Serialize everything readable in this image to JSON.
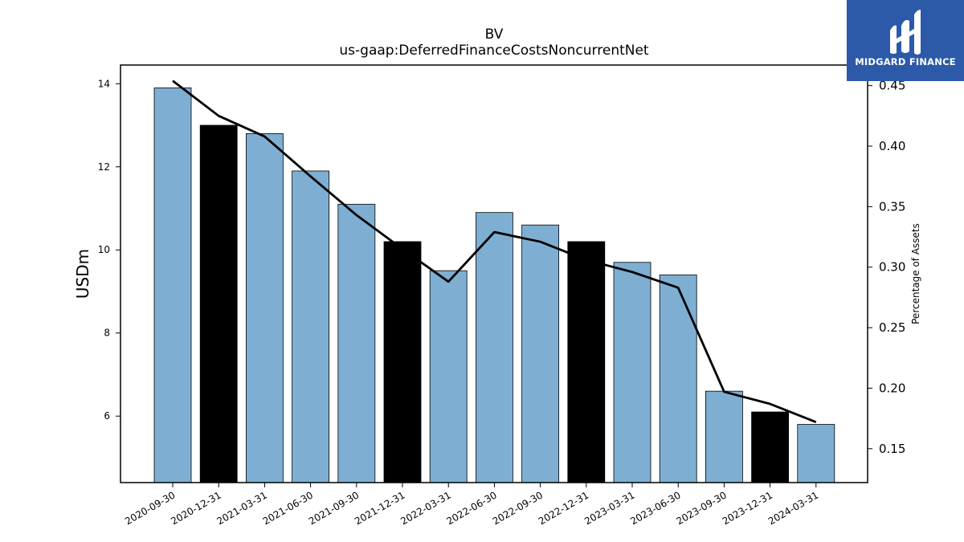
{
  "brand": {
    "name": "MIDGARD FINANCE",
    "bg_color": "#2c5aa9"
  },
  "chart_data": {
    "type": "bar",
    "title": "BV",
    "subtitle": "us-gaap:DeferredFinanceCostsNoncurrentNet",
    "ylabel": "USDm",
    "y2label": "Percentage of Assets",
    "categories": [
      "2020-09-30",
      "2020-12-31",
      "2021-03-31",
      "2021-06-30",
      "2021-09-30",
      "2021-12-31",
      "2022-03-31",
      "2022-06-30",
      "2022-09-30",
      "2022-12-31",
      "2023-03-31",
      "2023-06-30",
      "2023-09-30",
      "2023-12-31",
      "2024-03-31"
    ],
    "series": [
      {
        "type": "bar",
        "axis": "left",
        "values": [
          13.9,
          13.0,
          12.8,
          11.9,
          11.1,
          10.2,
          9.5,
          10.9,
          10.6,
          10.2,
          9.7,
          9.4,
          6.6,
          6.1,
          5.8
        ],
        "highlight": [
          false,
          true,
          false,
          false,
          false,
          true,
          false,
          false,
          false,
          true,
          false,
          false,
          false,
          true,
          false
        ],
        "color": "#7eafd3",
        "highlight_color": "#000000"
      },
      {
        "type": "line",
        "axis": "right",
        "values": [
          0.454,
          0.425,
          0.408,
          0.375,
          0.343,
          0.315,
          0.288,
          0.329,
          0.321,
          0.306,
          0.296,
          0.283,
          0.197,
          0.187,
          0.172
        ],
        "color": "#000000"
      }
    ],
    "ylim": [
      4.4,
      14.45
    ],
    "y2lim": [
      0.122,
      0.467
    ],
    "yticks": [
      6,
      8,
      10,
      12,
      14
    ],
    "y2ticks": [
      "0.15",
      "0.20",
      "0.25",
      "0.30",
      "0.35",
      "0.40",
      "0.45"
    ],
    "grid": false
  }
}
